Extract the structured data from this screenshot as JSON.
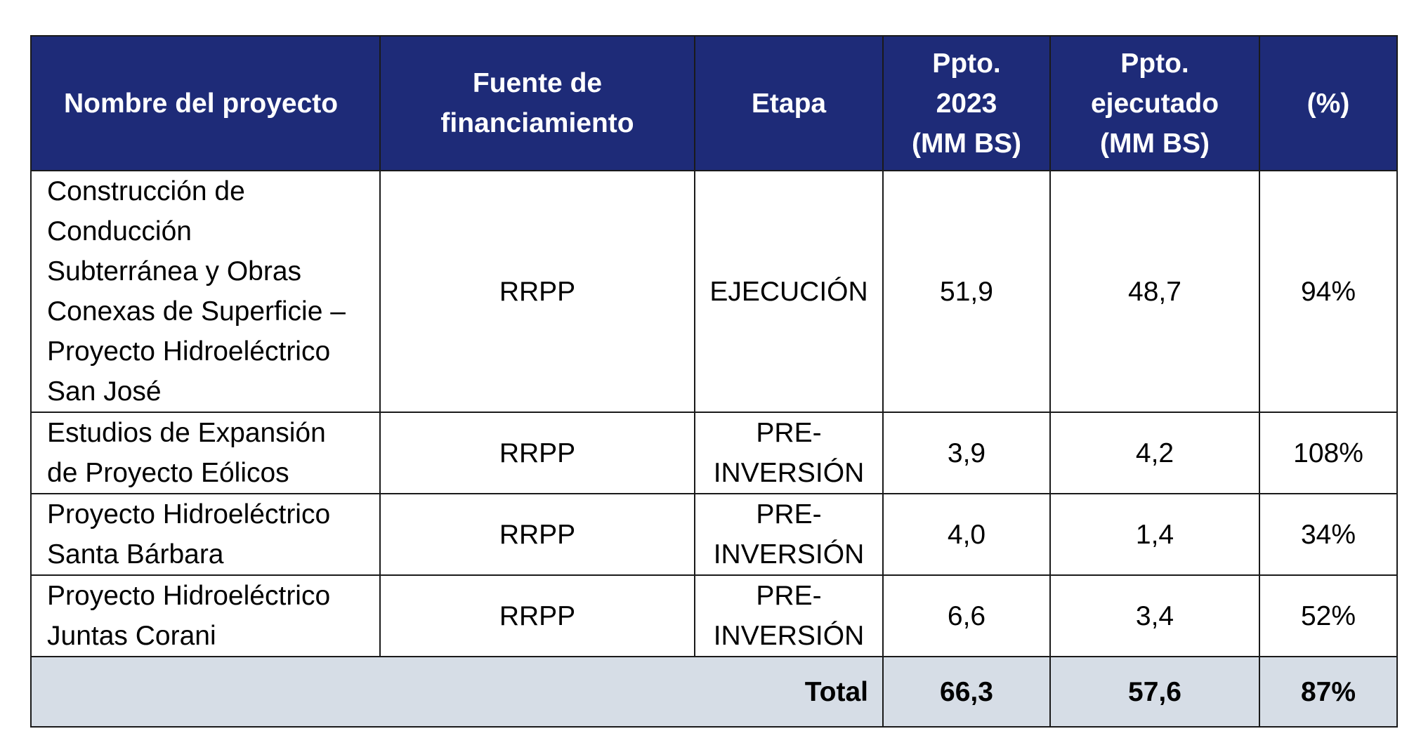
{
  "table": {
    "headers": [
      [
        "Nombre del proyecto"
      ],
      [
        "Fuente de",
        "financiamiento"
      ],
      [
        "Etapa"
      ],
      [
        "Ppto.",
        "2023",
        "(MM BS)"
      ],
      [
        "Ppto.",
        "ejecutado",
        "(MM BS)"
      ],
      [
        "(%)"
      ]
    ],
    "rows": [
      {
        "name": [
          "Construcción de",
          "Conducción",
          "Subterránea y Obras",
          "Conexas de Superficie –",
          "Proyecto Hidroeléctrico",
          "San José"
        ],
        "fuente": "RRPP",
        "etapa": [
          "EJECUCIÓN"
        ],
        "ppto_2023": "51,9",
        "ppto_ejecutado": "48,7",
        "porcentaje": "94%"
      },
      {
        "name": [
          "Estudios de Expansión",
          "de Proyecto Eólicos"
        ],
        "fuente": "RRPP",
        "etapa": [
          "PRE-",
          "INVERSIÓN"
        ],
        "ppto_2023": "3,9",
        "ppto_ejecutado": "4,2",
        "porcentaje": "108%"
      },
      {
        "name": [
          "Proyecto Hidroeléctrico",
          "Santa Bárbara"
        ],
        "fuente": "RRPP",
        "etapa": [
          "PRE-",
          "INVERSIÓN"
        ],
        "ppto_2023": "4,0",
        "ppto_ejecutado": "1,4",
        "porcentaje": "34%"
      },
      {
        "name": [
          "Proyecto Hidroeléctrico",
          "Juntas Corani"
        ],
        "fuente": "RRPP",
        "etapa": [
          "PRE-",
          "INVERSIÓN"
        ],
        "ppto_2023": "6,6",
        "ppto_ejecutado": "3,4",
        "porcentaje": "52%"
      }
    ],
    "total": {
      "label": "Total",
      "ppto_2023": "66,3",
      "ppto_ejecutado": "57,6",
      "porcentaje": "87%"
    }
  },
  "colors": {
    "header_bg": "#1e2b78",
    "header_text": "#ffffff",
    "total_bg": "#d6dde6",
    "border": "#1a1a1a"
  }
}
